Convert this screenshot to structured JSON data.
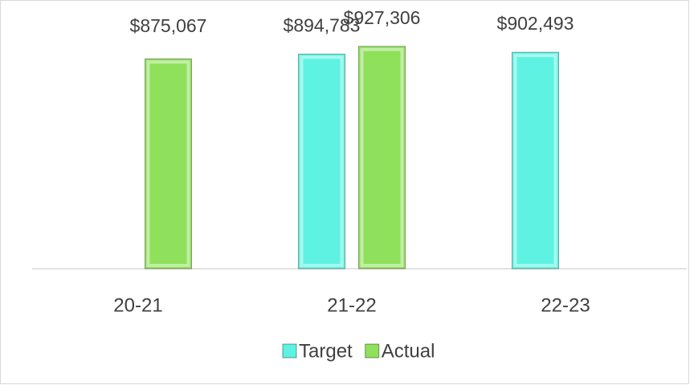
{
  "chart_data": {
    "type": "bar",
    "categories": [
      "20-21",
      "21-22",
      "22-23"
    ],
    "series": [
      {
        "name": "Target",
        "color": "#5ef2e2",
        "values": [
          null,
          894783,
          902493
        ],
        "value_labels": [
          null,
          "$894,783",
          "$902,493"
        ]
      },
      {
        "name": "Actual",
        "color": "#8fe05a",
        "values": [
          875067,
          927306,
          null
        ],
        "value_labels": [
          "$875,067",
          "$927,306",
          null
        ]
      }
    ],
    "ylim": [
      0,
      1000000
    ],
    "legend": "bottom"
  }
}
